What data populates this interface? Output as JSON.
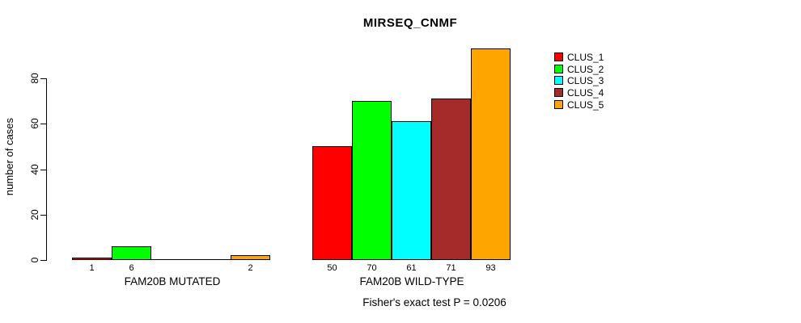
{
  "title": "MIRSEQ_CNMF",
  "footer": "Fisher's exact test P = 0.0206",
  "chart_data": {
    "type": "bar",
    "title": "MIRSEQ_CNMF",
    "xlabel": "",
    "ylabel": "number of cases",
    "ylim": [
      0,
      93
    ],
    "yticks": [
      0,
      20,
      40,
      60,
      80
    ],
    "grid": false,
    "legend_position": "right",
    "categories": [
      "FAM20B MUTATED",
      "FAM20B WILD-TYPE"
    ],
    "groups": [
      {
        "label": "FAM20B MUTATED",
        "values": [
          1,
          6,
          0,
          0,
          2
        ],
        "bar_labels": [
          "1",
          "6",
          "",
          "",
          "2"
        ]
      },
      {
        "label": "FAM20B WILD-TYPE",
        "values": [
          50,
          70,
          61,
          71,
          93
        ],
        "bar_labels": [
          "50",
          "70",
          "61",
          "71",
          "93"
        ]
      }
    ],
    "series": [
      {
        "name": "CLUS_1",
        "color": "#FF0000",
        "values": [
          1,
          50
        ]
      },
      {
        "name": "CLUS_2",
        "color": "#00FF00",
        "values": [
          6,
          70
        ]
      },
      {
        "name": "CLUS_3",
        "color": "#00FFFF",
        "values": [
          0,
          61
        ]
      },
      {
        "name": "CLUS_4",
        "color": "#A52A2A",
        "values": [
          0,
          71
        ]
      },
      {
        "name": "CLUS_5",
        "color": "#FFA500",
        "values": [
          2,
          93
        ]
      }
    ],
    "legend": [
      {
        "label": "CLUS_1",
        "color": "#FF0000"
      },
      {
        "label": "CLUS_2",
        "color": "#00FF00"
      },
      {
        "label": "CLUS_3",
        "color": "#00FFFF"
      },
      {
        "label": "CLUS_4",
        "color": "#A52A2A"
      },
      {
        "label": "CLUS_5",
        "color": "#FFA500"
      }
    ],
    "annotation": "Fisher's exact test P = 0.0206",
    "axis_color": "#000000",
    "background_color": "#FFFFFF"
  }
}
